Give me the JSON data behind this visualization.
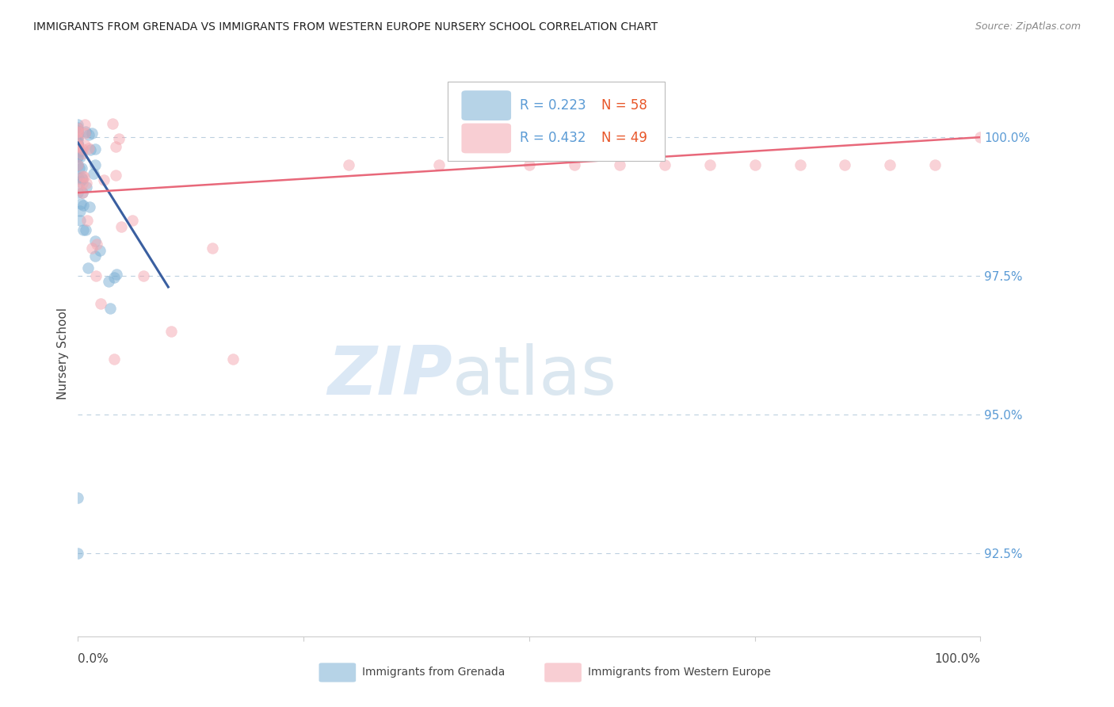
{
  "title": "IMMIGRANTS FROM GRENADA VS IMMIGRANTS FROM WESTERN EUROPE NURSERY SCHOOL CORRELATION CHART",
  "source": "Source: ZipAtlas.com",
  "ylabel": "Nursery School",
  "yticks": [
    92.5,
    95.0,
    97.5,
    100.0
  ],
  "ytick_labels": [
    "92.5%",
    "95.0%",
    "97.5%",
    "100.0%"
  ],
  "ylim": [
    91.0,
    101.2
  ],
  "xlim": [
    0.0,
    100.0
  ],
  "legend_R_blue": "R = 0.223",
  "legend_N_blue": "N = 58",
  "legend_R_pink": "R = 0.432",
  "legend_N_pink": "N = 49",
  "blue_color": "#7BAFD4",
  "pink_color": "#F4A7B0",
  "blue_line_color": "#3A5FA0",
  "pink_line_color": "#E8687A",
  "legend_color_blue_R": "#5B9BD5",
  "legend_color_blue_N": "#E8572A",
  "legend_color_pink_R": "#5B9BD5",
  "legend_color_pink_N": "#E8572A",
  "ytick_color": "#5B9BD5",
  "grid_color": "#BBCFDF",
  "bottom_spine_color": "#CCCCCC"
}
